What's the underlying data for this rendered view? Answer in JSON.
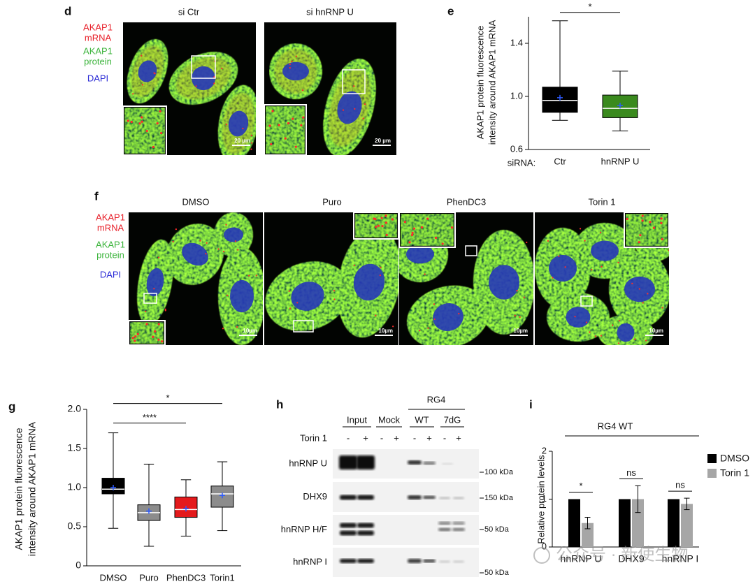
{
  "panel_labels": [
    "d",
    "e",
    "f",
    "g",
    "h",
    "i"
  ],
  "stain_labels": [
    [
      "AKAP1",
      "mRNA"
    ],
    [
      "AKAP1",
      "protein"
    ],
    [
      "DAPI"
    ]
  ],
  "panel_d": {
    "columns": [
      "si Ctr",
      "si hnRNP U"
    ],
    "scale_bar": "20 µm"
  },
  "panel_f": {
    "columns": [
      "DMSO",
      "Puro",
      "PhenDC3",
      "Torin 1"
    ],
    "scale_bar": "10µm"
  },
  "panel_h": {
    "group": "RG4",
    "lanes": [
      "Input",
      "Mock",
      "WT",
      "7dG"
    ],
    "treatment": "Torin 1",
    "signs": [
      "-",
      "+"
    ],
    "proteins": [
      "hnRNP U",
      "DHX9",
      "hnRNP H/F",
      "hnRNP I"
    ],
    "markers": [
      "100 kDa",
      "150 kDa",
      "50 kDa",
      "50 kDa"
    ]
  },
  "watermark": "公众号 · 新使生物",
  "chart_data": [
    {
      "type": "box",
      "y_label": [
        "AKAP1 protein fluorescence",
        "intensity around AKAP1 mRNA"
      ],
      "x_label": "siRNA:",
      "categories": [
        "Ctr",
        "hnRNP U"
      ],
      "colors": [
        "#000000",
        "#3a8a1e"
      ],
      "min": [
        0.82,
        0.74
      ],
      "q1": [
        0.88,
        0.84
      ],
      "median": [
        0.97,
        0.91
      ],
      "q3": [
        1.07,
        1.01
      ],
      "max": [
        1.57,
        1.19
      ],
      "mean": [
        0.99,
        0.93
      ],
      "ylim": [
        0.6,
        1.6
      ],
      "yticks": [
        0.6,
        {
          "value": 1,
          "label": "1.0"
        },
        1.4
      ],
      "annotations": [
        "*"
      ]
    },
    {
      "type": "box",
      "y_label": [
        "AKAP1 protein fluorescence",
        "intensity around AKAP1 mRNA"
      ],
      "categories": [
        "DMSO",
        "Puro",
        "PhenDC3",
        "Torin1"
      ],
      "colors": [
        "#000000",
        "#8c8c8c",
        "#e41a1c",
        "#8c8c8c"
      ],
      "min": [
        0.48,
        0.25,
        0.38,
        0.45
      ],
      "q1": [
        0.92,
        0.58,
        0.62,
        0.75
      ],
      "median": [
        0.98,
        0.68,
        0.72,
        0.92
      ],
      "q3": [
        1.12,
        0.78,
        0.88,
        1.02
      ],
      "max": [
        1.7,
        1.3,
        1.1,
        1.33
      ],
      "mean": [
        1.0,
        0.7,
        0.73,
        0.9
      ],
      "ylim": [
        0,
        2
      ],
      "yticks": [
        0,
        0.5,
        {
          "value": 1,
          "label": "1.0"
        },
        1.5,
        {
          "value": 2,
          "label": "2.0"
        }
      ],
      "annotations": [
        "*",
        "****"
      ]
    },
    {
      "type": "bar",
      "title": "RG4 WT",
      "y_label": "Relative protein levels",
      "categories": [
        "hnRNP U",
        "DHX9",
        "hnRNP I"
      ],
      "series": [
        {
          "name": "DMSO",
          "color": "#000000",
          "values": [
            1,
            1,
            1
          ]
        },
        {
          "name": "Torin 1",
          "color": "#a6a6a6",
          "values": [
            0.5,
            1.0,
            0.9
          ],
          "errors": [
            0.12,
            0.28,
            0.12
          ]
        }
      ],
      "ylim": [
        0,
        2
      ],
      "yticks": [
        0,
        1,
        2
      ],
      "annotations": [
        "*",
        "ns",
        "ns"
      ],
      "legend": "right"
    }
  ]
}
